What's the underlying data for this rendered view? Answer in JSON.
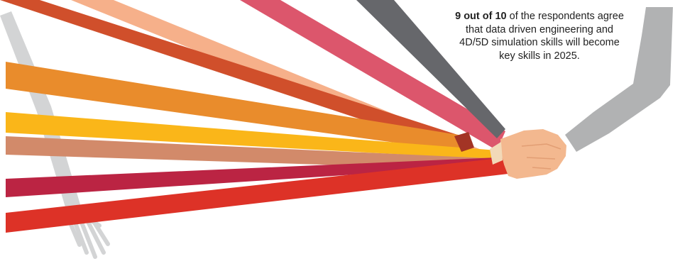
{
  "callout": {
    "highlight": "9 out of 10",
    "text": " of the respondents agree that data driven engineering and 4D/5D simulation skills will become key skills in 2025."
  },
  "colors": {
    "peach": "#f6b08a",
    "red_orange": "#d04f2b",
    "pink": "#dc566c",
    "dark_gray": "#66676b",
    "orange": "#e98c2c",
    "yellow": "#fab619",
    "tan": "#d28a6a",
    "crimson": "#bb2443",
    "red": "#dd3227",
    "skin": "#f3b88f",
    "sleeve_gray": "#b1b2b3",
    "light_gray": "#d3d4d5"
  }
}
